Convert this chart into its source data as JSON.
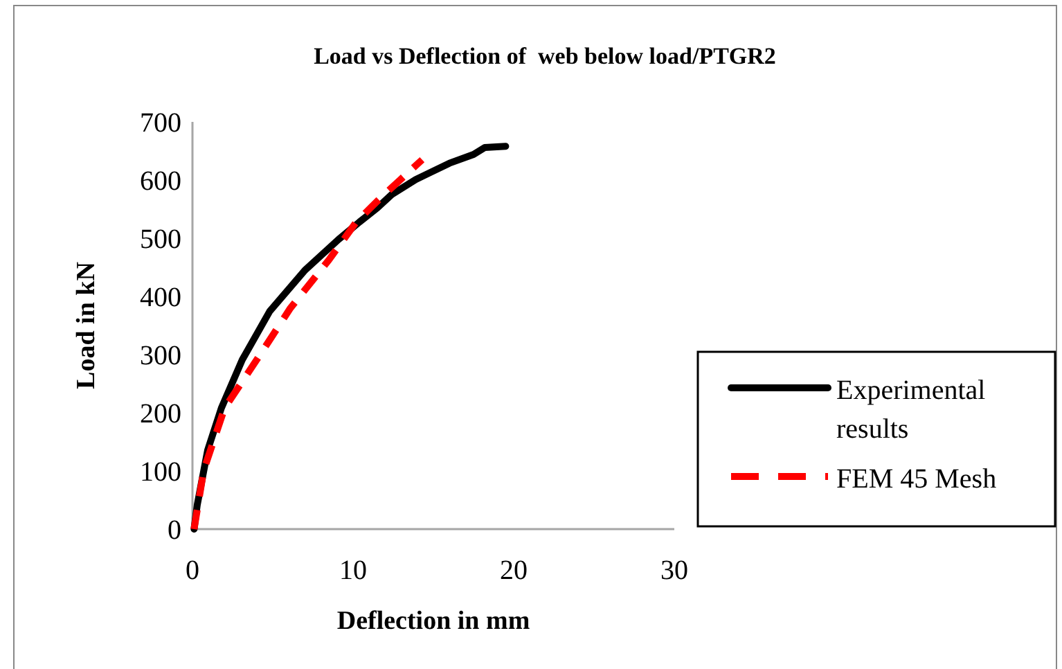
{
  "chart_data": {
    "type": "line",
    "title": "Load vs Deflection of  web below load/PTGR2",
    "xlabel": "Deflection in mm",
    "ylabel": "Load in kN",
    "xlim": [
      0,
      30
    ],
    "xticks": [
      0,
      10,
      20,
      30
    ],
    "ylim": [
      0,
      700
    ],
    "yticks": [
      0,
      100,
      200,
      300,
      400,
      500,
      600,
      700
    ],
    "grid": false,
    "legend": "right",
    "marker": "none",
    "series": [
      {
        "name": "Experimental results",
        "color": "#000000",
        "line_style": "solid",
        "x": [
          0.1,
          0.3,
          0.95,
          1.8,
          3.1,
          4.8,
          7.0,
          9.1,
          10.4,
          11.5,
          12.4,
          13.9,
          16.0,
          17.5,
          18.2,
          19.5
        ],
        "values": [
          0,
          42,
          136,
          208,
          291,
          374,
          445,
          498,
          528,
          552,
          575,
          601,
          629,
          644,
          656,
          658
        ]
      },
      {
        "name": "FEM 45 Mesh",
        "color": "#ff0000",
        "line_style": "dashed",
        "x": [
          0.1,
          0.7,
          2.0,
          4.0,
          6.1,
          8.5,
          10.2,
          11.7,
          14.3
        ],
        "values": [
          0,
          101,
          208,
          291,
          380,
          463,
          528,
          569,
          635
        ]
      }
    ]
  }
}
